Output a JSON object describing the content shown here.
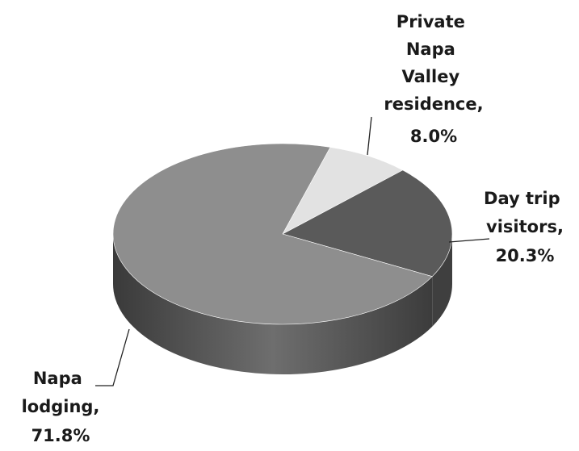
{
  "chart_data": {
    "type": "pie",
    "three_d": true,
    "categories": [
      "Private Napa Valley residence,",
      "Day trip visitors,",
      "Napa lodging,"
    ],
    "values": [
      8.0,
      20.3,
      71.8
    ],
    "value_labels": [
      "8.0%",
      "20.3%",
      "71.8%"
    ],
    "colors": [
      "#e2e2e2",
      "#5a5a5a",
      "#8e8e8e"
    ]
  }
}
